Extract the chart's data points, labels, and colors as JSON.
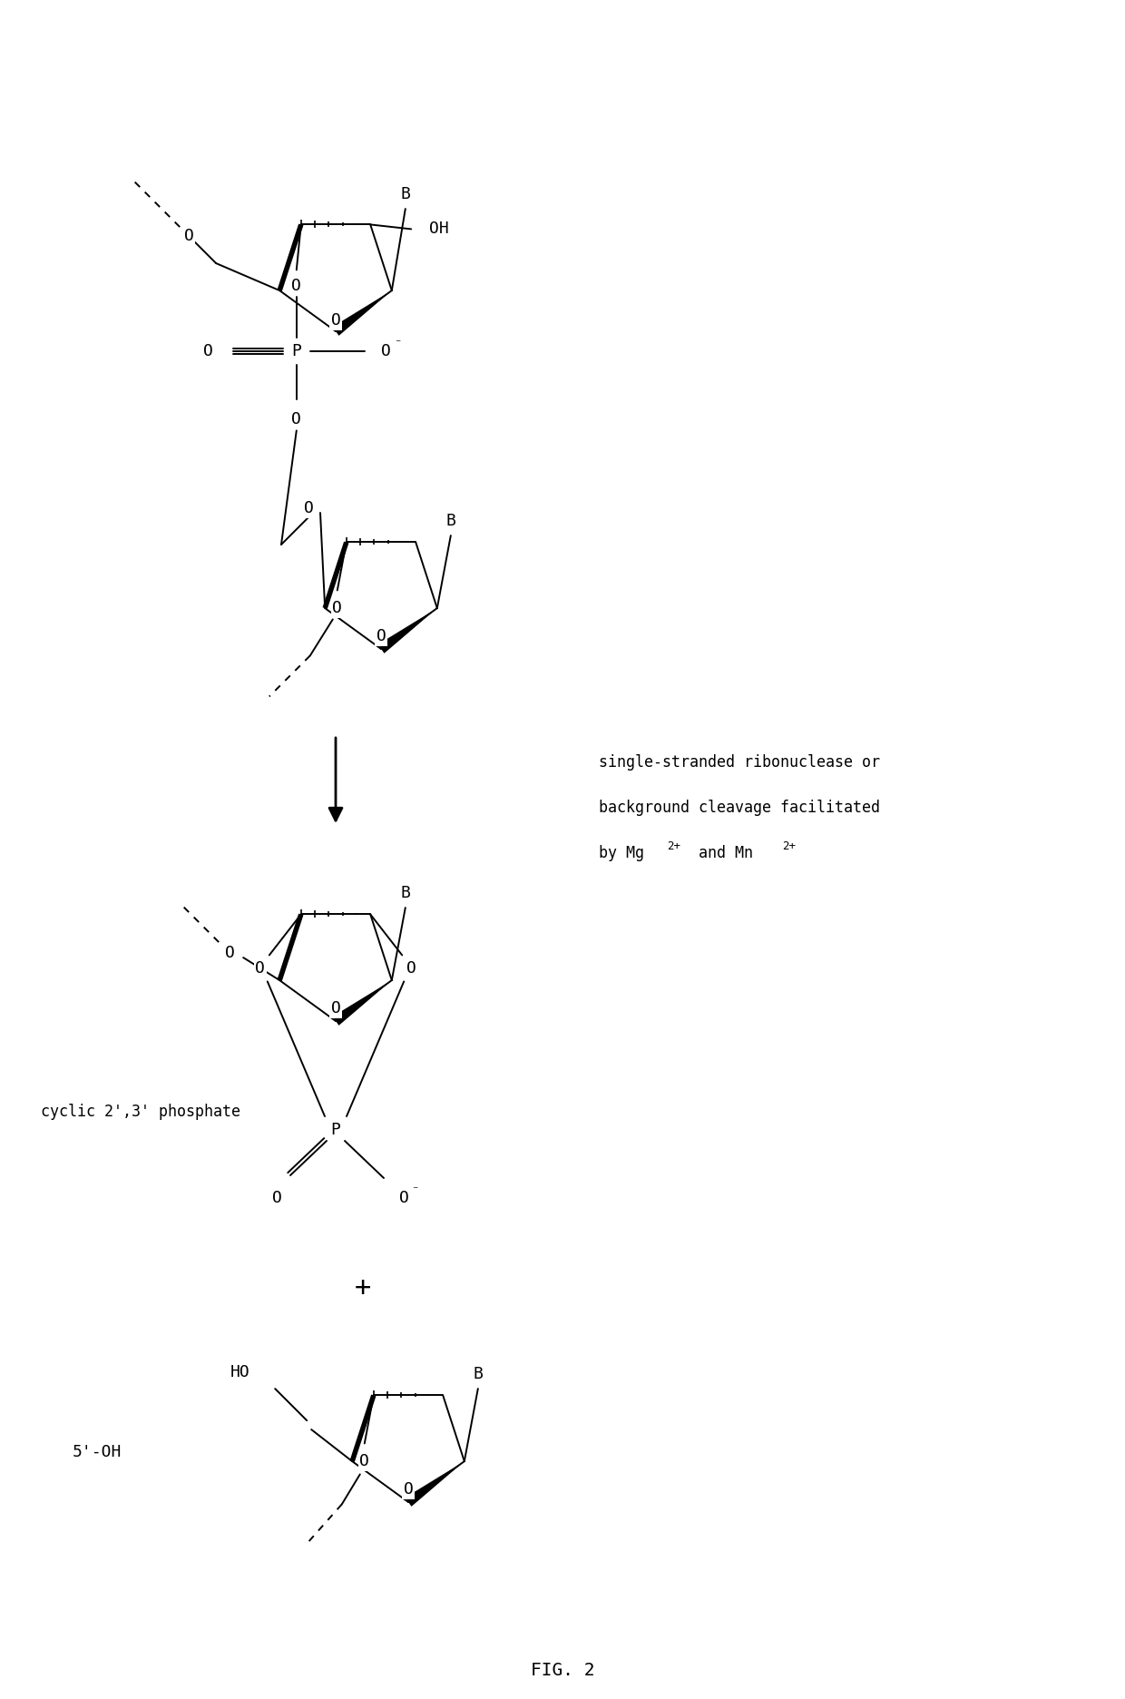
{
  "title": "FIG. 2",
  "bg_color": "#ffffff",
  "text_color": "#000000",
  "annotation_line1": "single-stranded ribonuclease or",
  "annotation_line2": "background cleavage facilitated",
  "annotation_line3_pre": "by Mg",
  "annotation_line3_sup1": "2+",
  "annotation_line3_mid": " and Mn",
  "annotation_line3_sup2": "2+",
  "label_cyclic": "cyclic 2',3' phosphate",
  "label_5oh": "5'-OH"
}
